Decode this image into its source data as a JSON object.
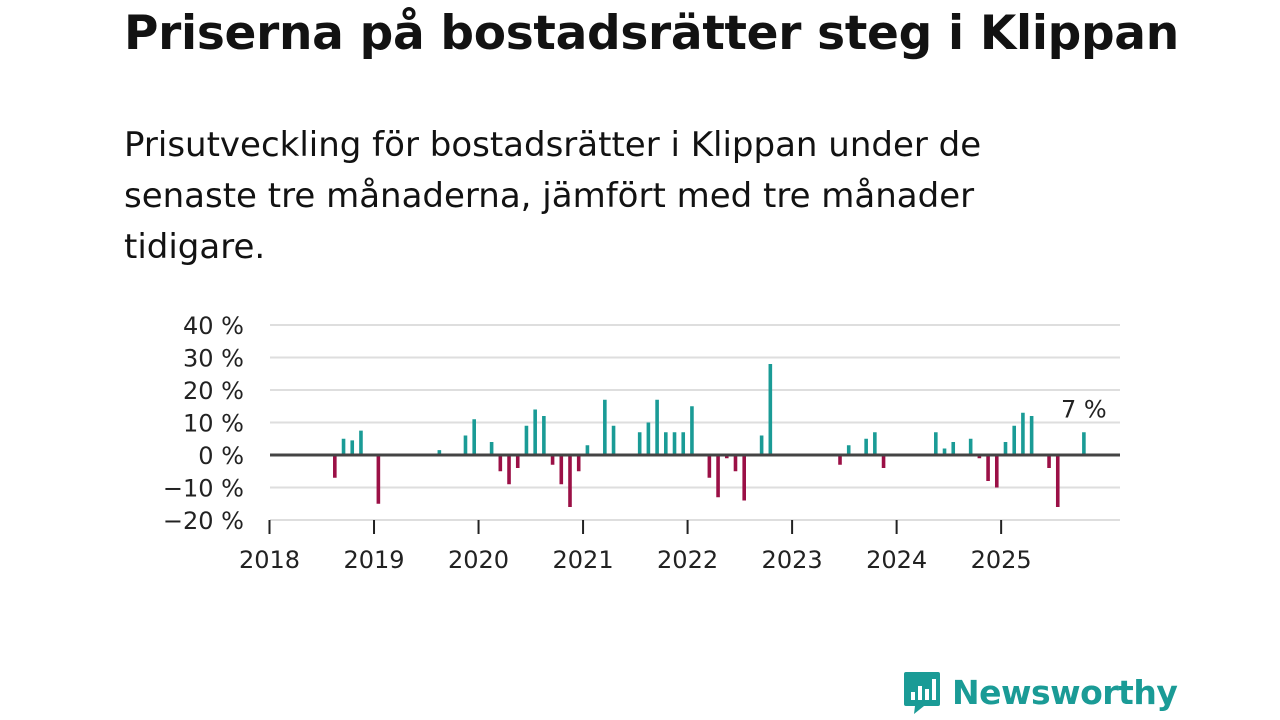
{
  "title": "Priserna på bostadsrätter steg i Klippan",
  "subtitle": "Prisutveckling för bostadsrätter i Klippan under de senaste tre månaderna, jämfört med tre månader tidigare.",
  "brand": {
    "name": "Newsworthy"
  },
  "colors": {
    "positive": "#1a9b96",
    "negative": "#9b1046",
    "brand": "#1a9b96"
  },
  "chart_data": {
    "type": "bar",
    "title": "",
    "xlabel": "",
    "ylabel": "",
    "unit": "%",
    "ylim": [
      -20,
      40
    ],
    "yticks": [
      {
        "value": 40,
        "label": "40 %"
      },
      {
        "value": 30,
        "label": "30 %"
      },
      {
        "value": 20,
        "label": "20 %"
      },
      {
        "value": 10,
        "label": "10 %"
      },
      {
        "value": 0,
        "label": "0 %"
      },
      {
        "value": -10,
        "label": "−10 %"
      },
      {
        "value": -20,
        "label": "−20 %"
      }
    ],
    "xticks": [
      "2018",
      "2019",
      "2020",
      "2021",
      "2022",
      "2023",
      "2024",
      "2025"
    ],
    "start": {
      "year": 2018,
      "month": 1
    },
    "last_value_label": "7 %",
    "series": [
      {
        "name": "Prisutveckling",
        "values": [
          null,
          null,
          null,
          null,
          null,
          null,
          0.3,
          -7,
          5,
          4.5,
          7.5,
          null,
          -15,
          null,
          null,
          null,
          null,
          null,
          null,
          1.5,
          null,
          null,
          6,
          11,
          null,
          4,
          -5,
          -9,
          -4,
          9,
          14,
          12,
          -3,
          -9,
          -16,
          -5,
          3,
          null,
          17,
          9,
          null,
          null,
          7,
          10,
          17,
          7,
          7,
          7,
          15,
          null,
          -7,
          -13,
          -1,
          -5,
          -14,
          null,
          6,
          28,
          null,
          null,
          null,
          null,
          null,
          null,
          null,
          -3,
          3,
          null,
          5,
          7,
          -4,
          null,
          null,
          null,
          null,
          null,
          7,
          2,
          4,
          null,
          5,
          -1,
          -8,
          -10,
          4,
          9,
          13,
          12,
          null,
          -4,
          -16,
          null,
          null,
          7
        ]
      }
    ]
  }
}
